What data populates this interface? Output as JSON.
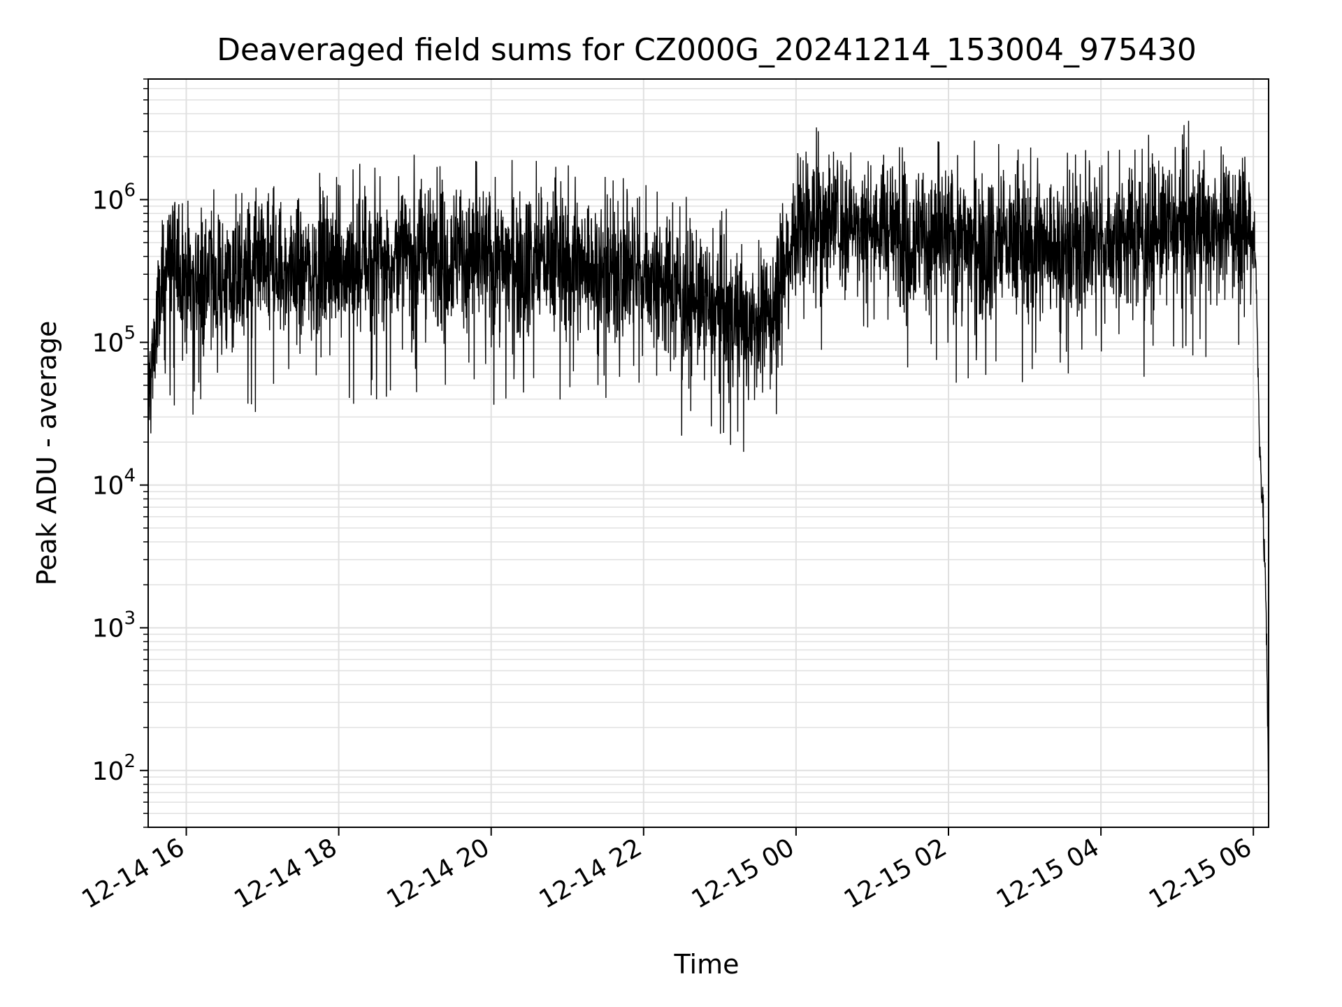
{
  "chart_data": {
    "type": "line",
    "title": "Deaveraged field sums for CZ000G_20241214_153004_975430",
    "xlabel": "Time",
    "ylabel": "Peak ADU - average",
    "yscale": "log",
    "ylim": [
      40,
      7000000
    ],
    "xlim": [
      "2024-12-14 15:30",
      "2024-12-15 06:12"
    ],
    "grid": true,
    "grid_color": "#e0e0e0",
    "line_color": "#000000",
    "x_ticks": [
      {
        "value": "2024-12-14 16:00",
        "label": "12-14 16"
      },
      {
        "value": "2024-12-14 18:00",
        "label": "12-14 18"
      },
      {
        "value": "2024-12-14 20:00",
        "label": "12-14 20"
      },
      {
        "value": "2024-12-14 22:00",
        "label": "12-14 22"
      },
      {
        "value": "2024-12-15 00:00",
        "label": "12-15 00"
      },
      {
        "value": "2024-12-15 02:00",
        "label": "12-15 02"
      },
      {
        "value": "2024-12-15 04:00",
        "label": "12-15 04"
      },
      {
        "value": "2024-12-15 06:00",
        "label": "12-15 06"
      }
    ],
    "y_ticks": [
      {
        "value": 100,
        "base": "10",
        "exp": "2"
      },
      {
        "value": 1000,
        "base": "10",
        "exp": "3"
      },
      {
        "value": 10000,
        "base": "10",
        "exp": "4"
      },
      {
        "value": 100000,
        "base": "10",
        "exp": "5"
      },
      {
        "value": 1000000,
        "base": "10",
        "exp": "6"
      }
    ],
    "series": [
      {
        "x": [
          "2024-12-14 15:30",
          "2024-12-14 15:35",
          "2024-12-14 15:45",
          "2024-12-14 16:00",
          "2024-12-14 16:30",
          "2024-12-14 17:00",
          "2024-12-14 17:30",
          "2024-12-14 18:00",
          "2024-12-14 18:30",
          "2024-12-14 19:00",
          "2024-12-14 19:30",
          "2024-12-14 20:00",
          "2024-12-14 20:30",
          "2024-12-14 21:00",
          "2024-12-14 21:30",
          "2024-12-14 22:00",
          "2024-12-14 22:30",
          "2024-12-14 23:00",
          "2024-12-14 23:20",
          "2024-12-14 23:40",
          "2024-12-15 00:00",
          "2024-12-15 00:30",
          "2024-12-15 01:00",
          "2024-12-15 01:30",
          "2024-12-15 02:00",
          "2024-12-15 02:30",
          "2024-12-15 03:00",
          "2024-12-15 03:30",
          "2024-12-15 04:00",
          "2024-12-15 04:30",
          "2024-12-15 05:00",
          "2024-12-15 05:30",
          "2024-12-15 06:00",
          "2024-12-15 06:02",
          "2024-12-15 06:05",
          "2024-12-15 06:08",
          "2024-12-15 06:10",
          "2024-12-15 06:12"
        ],
        "y": [
          40000,
          100000,
          380000,
          300000,
          260000,
          300000,
          320000,
          340000,
          380000,
          420000,
          430000,
          360000,
          380000,
          360000,
          320000,
          300000,
          220000,
          160000,
          140000,
          150000,
          680000,
          720000,
          650000,
          560000,
          520000,
          500000,
          480000,
          470000,
          500000,
          560000,
          630000,
          660000,
          640000,
          320000,
          20000,
          5000,
          1500,
          60
        ]
      }
    ]
  }
}
